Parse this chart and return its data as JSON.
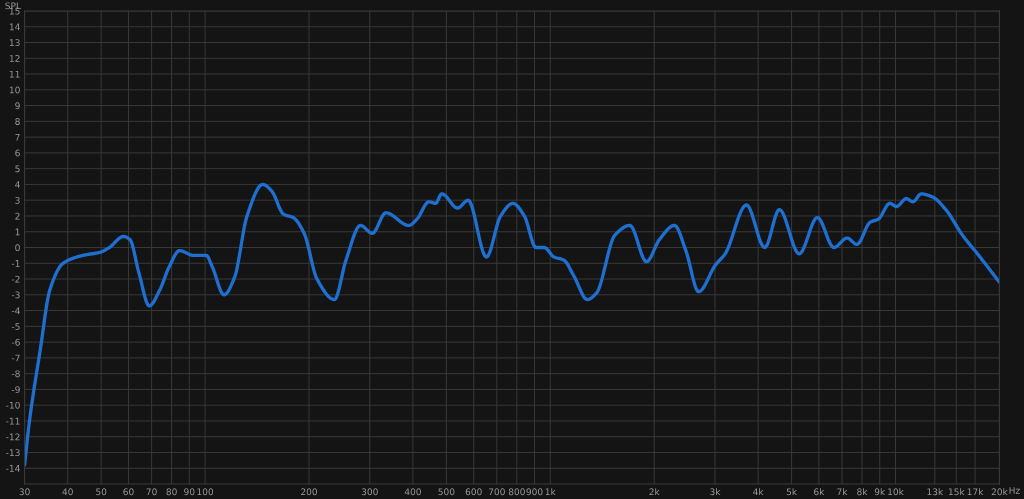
{
  "chart_data": {
    "type": "line",
    "ylabel": "SPL",
    "log": "x",
    "grid": true,
    "marker": "none",
    "line_style": "solid",
    "xlim": [
      30,
      20000
    ],
    "ylim": [
      -15,
      15
    ],
    "xticks": [
      30,
      40,
      50,
      60,
      70,
      80,
      90,
      100,
      200,
      300,
      400,
      500,
      600,
      700,
      800,
      900,
      {
        "value": 1000,
        "label": "1k"
      },
      {
        "value": 2000,
        "label": "2k"
      },
      {
        "value": 3000,
        "label": "3k"
      },
      {
        "value": 4000,
        "label": "4k"
      },
      {
        "value": 5000,
        "label": "5k"
      },
      {
        "value": 6000,
        "label": "6k"
      },
      {
        "value": 7000,
        "label": "7k"
      },
      {
        "value": 8000,
        "label": "8k"
      },
      {
        "value": 9000,
        "label": "9k"
      },
      {
        "value": 10000,
        "label": "10k"
      },
      {
        "value": 13000,
        "label": "13k"
      },
      {
        "value": 15000,
        "label": "15k"
      },
      {
        "value": 17000,
        "label": "17k"
      },
      {
        "value": 20000,
        "label": "20k"
      }
    ],
    "xlabel": "Hz",
    "yticks": [
      -14,
      -13,
      -12,
      -11,
      -10,
      -9,
      -8,
      -7,
      -6,
      -5,
      -4,
      -3,
      -2,
      -1,
      0,
      1,
      2,
      3,
      4,
      5,
      6,
      7,
      8,
      9,
      10,
      11,
      12,
      13,
      14,
      15
    ],
    "series": [
      {
        "color": "#1e6fd0",
        "x": [
          30,
          31,
          33.3,
          35.5,
          38.8,
          44.3,
          49.7,
          52.8,
          58,
          60.6,
          64.3,
          68.9,
          73.9,
          78.8,
          84.3,
          92.6,
          100.8,
          104.8,
          113.5,
          121.7,
          132.3,
          146.8,
          155.7,
          169,
          180,
          193.6,
          211,
          237,
          256,
          282,
          305,
          334,
          389,
          411,
          445,
          465,
          485,
          539,
          578,
          653,
          718,
          779,
          841,
          909,
          960,
          1025,
          1095,
          1170,
          1280,
          1360,
          1540,
          1700,
          1900,
          2070,
          2290,
          2470,
          2690,
          3010,
          3210,
          3700,
          4180,
          4610,
          5260,
          5940,
          6630,
          7240,
          7730,
          8440,
          8920,
          9630,
          10060,
          10750,
          11230,
          11870,
          12810,
          13990,
          15610,
          17420,
          20000
        ],
        "values": [
          -13.8,
          -11,
          -6.5,
          -2.7,
          -1.0,
          -0.5,
          -0.3,
          0,
          0.7,
          0.5,
          -1.6,
          -3.7,
          -2.7,
          -1.2,
          -0.2,
          -0.5,
          -0.5,
          -1.2,
          -3.0,
          -1.9,
          2.0,
          4.0,
          3.6,
          2.1,
          1.9,
          0.9,
          -2.0,
          -3.3,
          -0.8,
          1.4,
          0.9,
          2.2,
          1.4,
          1.8,
          2.9,
          2.8,
          3.4,
          2.5,
          3.0,
          -0.6,
          2.0,
          2.8,
          2.0,
          0,
          0,
          -0.6,
          -0.8,
          -1.8,
          -3.3,
          -2.9,
          0.8,
          1.4,
          -0.9,
          0.5,
          1.4,
          -0.2,
          -2.8,
          -1.1,
          -0.4,
          2.7,
          0,
          2.4,
          -0.4,
          1.9,
          0,
          0.6,
          0.2,
          1.6,
          1.8,
          2.8,
          2.6,
          3.1,
          2.9,
          3.4,
          3.2,
          2.4,
          0.8,
          -0.5,
          -2.2
        ]
      }
    ]
  }
}
